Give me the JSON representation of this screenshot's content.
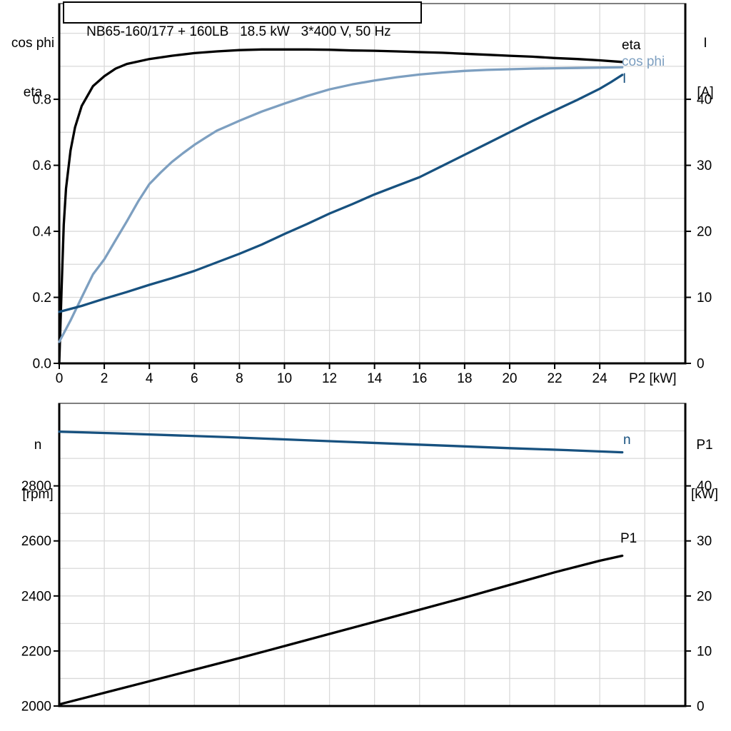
{
  "chart_data": [
    {
      "type": "line",
      "panel": "motor-efficiency-current",
      "title": "NB65-160/177 + 160LB   18.5 kW   3*400 V, 50 Hz",
      "xlabel": "P2 [kW]",
      "ylabel_left": [
        "cos phi",
        "eta"
      ],
      "ylabel_right": [
        "I",
        "[A]"
      ],
      "xlim": [
        0,
        27.8
      ],
      "ylim_left": [
        0,
        1.09
      ],
      "ylim_right": [
        0,
        54.5
      ],
      "grid": true,
      "grid_step_x": 2,
      "grid_step_y_left": 0.1,
      "x_ticks": {
        "values": [
          0,
          2,
          4,
          6,
          8,
          10,
          12,
          14,
          16,
          18,
          20,
          22,
          24
        ],
        "labels": [
          "0",
          "2",
          "4",
          "6",
          "8",
          "10",
          "12",
          "14",
          "16",
          "18",
          "20",
          "22",
          "24"
        ]
      },
      "y_ticks_left": {
        "values": [
          0,
          0.2,
          0.4,
          0.6,
          0.8
        ],
        "labels": [
          "0.0",
          "0.2",
          "0.4",
          "0.6",
          "0.8"
        ]
      },
      "y_ticks_right": {
        "values": [
          0,
          10,
          20,
          30,
          40
        ],
        "labels": [
          "0",
          "10",
          "20",
          "30",
          "40"
        ]
      },
      "series": [
        {
          "name": "eta",
          "axis": "left",
          "color": "#000000",
          "points": [
            [
              0,
              0
            ],
            [
              0.1,
              0.22
            ],
            [
              0.2,
              0.42
            ],
            [
              0.3,
              0.53
            ],
            [
              0.5,
              0.645
            ],
            [
              0.7,
              0.715
            ],
            [
              1,
              0.78
            ],
            [
              1.5,
              0.84
            ],
            [
              2,
              0.87
            ],
            [
              2.5,
              0.893
            ],
            [
              3,
              0.907
            ],
            [
              4,
              0.922
            ],
            [
              5,
              0.932
            ],
            [
              6,
              0.94
            ],
            [
              7,
              0.945
            ],
            [
              8,
              0.949
            ],
            [
              9,
              0.951
            ],
            [
              10,
              0.951
            ],
            [
              11,
              0.951
            ],
            [
              12,
              0.95
            ],
            [
              13,
              0.948
            ],
            [
              14,
              0.947
            ],
            [
              15,
              0.945
            ],
            [
              16,
              0.943
            ],
            [
              17,
              0.941
            ],
            [
              18,
              0.938
            ],
            [
              19,
              0.935
            ],
            [
              20,
              0.932
            ],
            [
              21,
              0.929
            ],
            [
              22,
              0.925
            ],
            [
              23,
              0.922
            ],
            [
              24,
              0.918
            ],
            [
              25,
              0.913
            ]
          ]
        },
        {
          "name": "cos phi",
          "axis": "left",
          "color": "#7d9fc0",
          "points": [
            [
              0,
              0.065
            ],
            [
              0.5,
              0.13
            ],
            [
              1,
              0.2
            ],
            [
              1.5,
              0.27
            ],
            [
              2,
              0.315
            ],
            [
              2.5,
              0.373
            ],
            [
              3,
              0.43
            ],
            [
              3.5,
              0.49
            ],
            [
              4,
              0.543
            ],
            [
              4.5,
              0.578
            ],
            [
              5,
              0.61
            ],
            [
              5.5,
              0.637
            ],
            [
              6,
              0.662
            ],
            [
              6.5,
              0.684
            ],
            [
              7,
              0.705
            ],
            [
              7.5,
              0.72
            ],
            [
              8,
              0.735
            ],
            [
              9,
              0.763
            ],
            [
              10,
              0.787
            ],
            [
              11,
              0.81
            ],
            [
              12,
              0.83
            ],
            [
              13,
              0.845
            ],
            [
              14,
              0.857
            ],
            [
              15,
              0.867
            ],
            [
              16,
              0.875
            ],
            [
              17,
              0.881
            ],
            [
              18,
              0.886
            ],
            [
              19,
              0.889
            ],
            [
              20,
              0.891
            ],
            [
              21,
              0.893
            ],
            [
              22,
              0.894
            ],
            [
              23,
              0.895
            ],
            [
              24,
              0.896
            ],
            [
              25,
              0.897
            ]
          ]
        },
        {
          "name": "I",
          "axis": "right",
          "color": "#17517f",
          "points": [
            [
              0,
              7.8
            ],
            [
              1,
              8.7
            ],
            [
              2,
              9.8
            ],
            [
              3,
              10.8
            ],
            [
              4,
              11.9
            ],
            [
              5,
              12.9
            ],
            [
              6,
              14
            ],
            [
              7,
              15.3
            ],
            [
              8,
              16.6
            ],
            [
              9,
              18
            ],
            [
              10,
              19.6
            ],
            [
              11,
              21.1
            ],
            [
              12,
              22.7
            ],
            [
              13,
              24.1
            ],
            [
              14,
              25.6
            ],
            [
              15,
              26.9
            ],
            [
              16,
              28.2
            ],
            [
              17,
              29.9
            ],
            [
              18,
              31.6
            ],
            [
              19,
              33.3
            ],
            [
              20,
              35
            ],
            [
              21,
              36.7
            ],
            [
              22,
              38.3
            ],
            [
              23,
              39.9
            ],
            [
              24,
              41.6
            ],
            [
              24.5,
              42.6
            ],
            [
              25,
              43.7
            ]
          ]
        }
      ]
    },
    {
      "type": "line",
      "panel": "speed-input-power",
      "xlabel": "",
      "ylabel_left": [
        "n",
        "[rpm]"
      ],
      "ylabel_right": [
        "P1",
        "[kW]"
      ],
      "xlim": [
        0,
        27.8
      ],
      "ylim_left": [
        2000,
        3100
      ],
      "ylim_right": [
        0,
        55
      ],
      "grid": true,
      "grid_step_x": 2,
      "grid_step_y_left": 100,
      "x_ticks": {
        "values": [],
        "labels": []
      },
      "y_ticks_left": {
        "values": [
          2000,
          2200,
          2400,
          2600,
          2800
        ],
        "labels": [
          "2000",
          "2200",
          "2400",
          "2600",
          "2800"
        ]
      },
      "y_ticks_right": {
        "values": [
          0,
          10,
          20,
          30,
          40
        ],
        "labels": [
          "0",
          "10",
          "20",
          "30",
          "40"
        ]
      },
      "series": [
        {
          "name": "n",
          "axis": "left",
          "color": "#17517f",
          "points": [
            [
              0,
              2997
            ],
            [
              2.5,
              2991
            ],
            [
              5,
              2984
            ],
            [
              7.5,
              2977
            ],
            [
              10,
              2969
            ],
            [
              12.5,
              2961
            ],
            [
              15,
              2953
            ],
            [
              17.5,
              2945
            ],
            [
              20,
              2937
            ],
            [
              22.5,
              2930
            ],
            [
              25,
              2922
            ]
          ]
        },
        {
          "name": "P1",
          "axis": "right",
          "color": "#000000",
          "points": [
            [
              0,
              0.3
            ],
            [
              2,
              2.4
            ],
            [
              4,
              4.5
            ],
            [
              6,
              6.6
            ],
            [
              8,
              8.7
            ],
            [
              10,
              10.9
            ],
            [
              12,
              13.1
            ],
            [
              14,
              15.3
            ],
            [
              16,
              17.5
            ],
            [
              18,
              19.7
            ],
            [
              20,
              22
            ],
            [
              22,
              24.3
            ],
            [
              24,
              26.4
            ],
            [
              25,
              27.3
            ]
          ]
        }
      ]
    }
  ],
  "colors": {
    "curve_black": "#000000",
    "curve_dark_blue": "#17517f",
    "curve_light_blue": "#7d9fc0",
    "gridline": "#d9d9d9",
    "axis": "#000000",
    "frame_top": "#555555"
  }
}
